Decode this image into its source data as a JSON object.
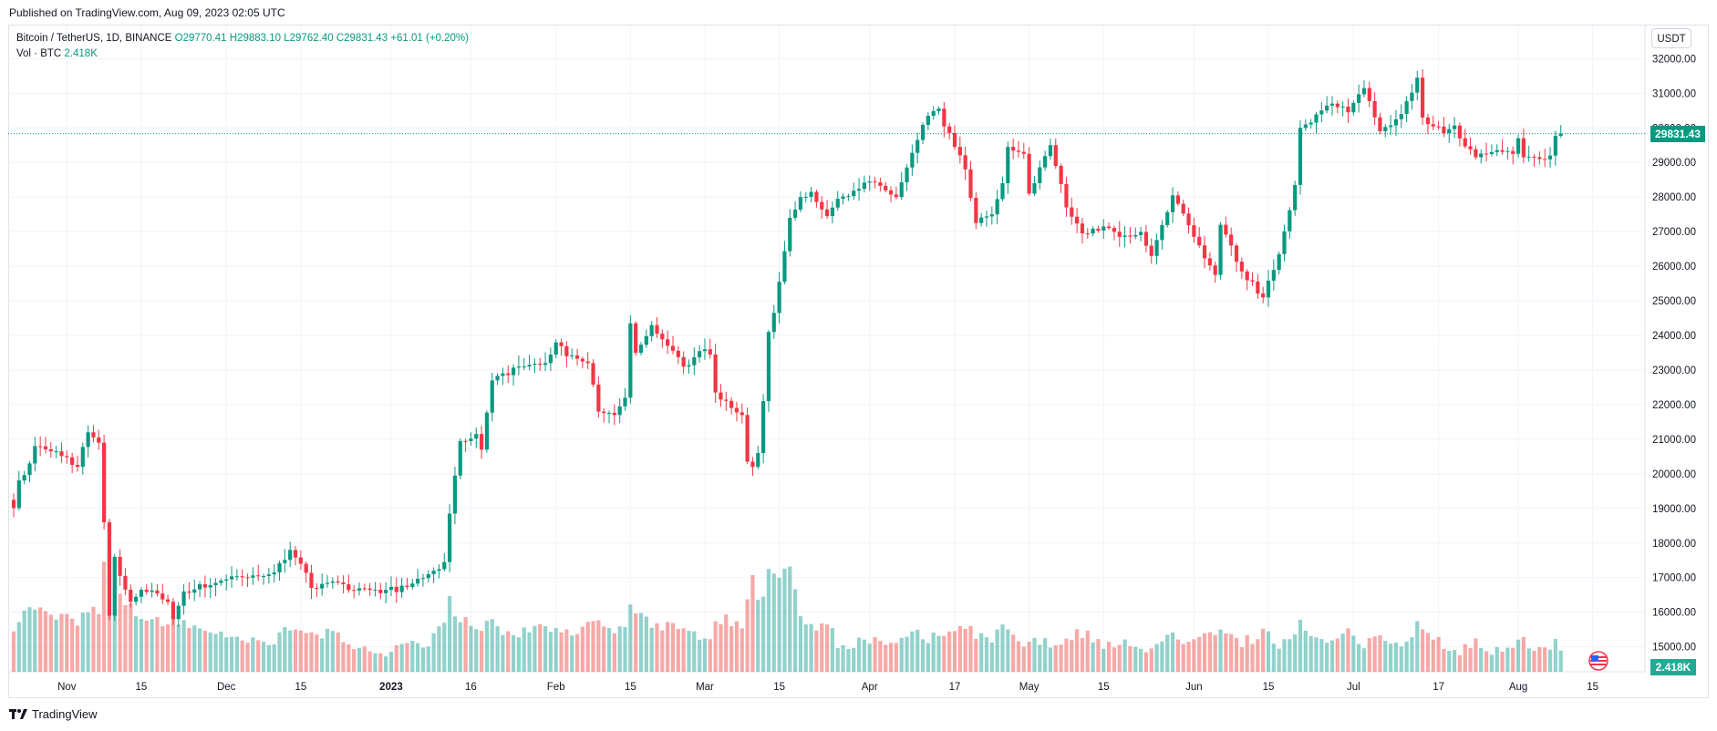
{
  "header": {
    "published": "Published on TradingView.com, Aug 09, 2023 02:05 UTC"
  },
  "legend": {
    "symbol": "Bitcoin / TetherUS, 1D, BINANCE",
    "open": "O29770.41",
    "high": "H29883.10",
    "low": "L29762.40",
    "close": "C29831.43",
    "change": "+61.01 (+0.20%)",
    "vol_label": "Vol · BTC",
    "vol_value": "2.418K"
  },
  "scale": {
    "unit": "USDT"
  },
  "last_price": "29831.43",
  "last_volume": "2.418K",
  "footer": {
    "brand": "TradingView"
  },
  "colors": {
    "up": "#089981",
    "down": "#f23645",
    "up_vol": "#26a69a",
    "down_vol": "#ef5350"
  },
  "chart_data": {
    "type": "candlestick",
    "title": "Bitcoin / TetherUS, 1D, BINANCE",
    "ylim": [
      14200,
      32800
    ],
    "y_ticks": [
      15000,
      16000,
      17000,
      18000,
      19000,
      20000,
      21000,
      22000,
      23000,
      24000,
      25000,
      26000,
      27000,
      28000,
      29000,
      30000,
      31000,
      32000
    ],
    "x_ticks": [
      {
        "label": "Nov",
        "date": "2022-11-01"
      },
      {
        "label": "15",
        "date": "2022-11-15"
      },
      {
        "label": "Dec",
        "date": "2022-12-01"
      },
      {
        "label": "15",
        "date": "2022-12-15"
      },
      {
        "label": "2023",
        "date": "2023-01-01"
      },
      {
        "label": "16",
        "date": "2023-01-16"
      },
      {
        "label": "Feb",
        "date": "2023-02-01"
      },
      {
        "label": "15",
        "date": "2023-02-15"
      },
      {
        "label": "Mar",
        "date": "2023-03-01"
      },
      {
        "label": "15",
        "date": "2023-03-15"
      },
      {
        "label": "Apr",
        "date": "2023-04-01"
      },
      {
        "label": "17",
        "date": "2023-04-17"
      },
      {
        "label": "May",
        "date": "2023-05-01"
      },
      {
        "label": "15",
        "date": "2023-05-15"
      },
      {
        "label": "Jun",
        "date": "2023-06-01"
      },
      {
        "label": "15",
        "date": "2023-06-15"
      },
      {
        "label": "Jul",
        "date": "2023-07-01"
      },
      {
        "label": "17",
        "date": "2023-07-17"
      },
      {
        "label": "Aug",
        "date": "2023-08-01"
      },
      {
        "label": "15",
        "date": "2023-08-15"
      }
    ],
    "x_range": [
      "2022-10-22",
      "2023-08-19"
    ],
    "last_price": 29831.43,
    "anchors": [
      [
        "2022-10-22",
        19450,
        5,
        -1
      ],
      [
        "2022-10-25",
        20300,
        7,
        1
      ],
      [
        "2022-10-26",
        20800,
        7,
        1
      ],
      [
        "2022-10-29",
        20650,
        6,
        -1
      ],
      [
        "2022-11-01",
        20480,
        6,
        -1
      ],
      [
        "2022-11-03",
        20200,
        5,
        -1
      ],
      [
        "2022-11-05",
        21200,
        7,
        1
      ],
      [
        "2022-11-07",
        20900,
        6,
        -1
      ],
      [
        "2022-11-08",
        18600,
        12,
        -1
      ],
      [
        "2022-11-09",
        15900,
        14,
        -1
      ],
      [
        "2022-11-10",
        17600,
        12,
        1
      ],
      [
        "2022-11-11",
        17050,
        8,
        -1
      ],
      [
        "2022-11-13",
        16300,
        7,
        -1
      ],
      [
        "2022-11-15",
        16650,
        6,
        1
      ],
      [
        "2022-11-20",
        16400,
        5,
        -1
      ],
      [
        "2022-11-21",
        15800,
        6,
        -1
      ],
      [
        "2022-11-23",
        16600,
        5,
        1
      ],
      [
        "2022-12-01",
        16950,
        4,
        1
      ],
      [
        "2022-12-05",
        17000,
        3,
        -1
      ],
      [
        "2022-12-10",
        17150,
        3,
        1
      ],
      [
        "2022-12-13",
        17800,
        5,
        1
      ],
      [
        "2022-12-15",
        17400,
        5,
        -1
      ],
      [
        "2022-12-17",
        16700,
        4,
        -1
      ],
      [
        "2022-12-20",
        16850,
        4,
        1
      ],
      [
        "2022-12-30",
        16550,
        2,
        -1
      ],
      [
        "2023-01-01",
        16600,
        2,
        1
      ],
      [
        "2023-01-08",
        17100,
        3,
        1
      ],
      [
        "2023-01-09",
        17200,
        4,
        1
      ],
      [
        "2023-01-11",
        17450,
        5,
        1
      ],
      [
        "2023-01-12",
        18850,
        8,
        1
      ],
      [
        "2023-01-13",
        19950,
        6,
        1
      ],
      [
        "2023-01-14",
        20950,
        6,
        1
      ],
      [
        "2023-01-17",
        21150,
        4,
        1
      ],
      [
        "2023-01-18",
        20700,
        5,
        -1
      ],
      [
        "2023-01-20",
        22700,
        5,
        1
      ],
      [
        "2023-01-22",
        22800,
        4,
        1
      ],
      [
        "2023-01-25",
        23100,
        4,
        1
      ],
      [
        "2023-01-30",
        23200,
        5,
        1
      ],
      [
        "2023-02-01",
        23800,
        4,
        1
      ],
      [
        "2023-02-03",
        23400,
        4,
        -1
      ],
      [
        "2023-02-07",
        23200,
        5,
        -1
      ],
      [
        "2023-02-09",
        21800,
        6,
        -1
      ],
      [
        "2023-02-12",
        21700,
        4,
        -1
      ],
      [
        "2023-02-14",
        22200,
        5,
        1
      ],
      [
        "2023-02-15",
        24350,
        7,
        1
      ],
      [
        "2023-02-16",
        23500,
        7,
        -1
      ],
      [
        "2023-02-19",
        24300,
        5,
        1
      ],
      [
        "2023-02-22",
        23700,
        5,
        -1
      ],
      [
        "2023-02-25",
        23100,
        4,
        -1
      ],
      [
        "2023-03-01",
        23600,
        4,
        1
      ],
      [
        "2023-03-02",
        23450,
        4,
        -1
      ],
      [
        "2023-03-03",
        22350,
        6,
        -1
      ],
      [
        "2023-03-08",
        21700,
        5,
        -1
      ],
      [
        "2023-03-09",
        20350,
        8,
        -1
      ],
      [
        "2023-03-10",
        20200,
        10,
        -1
      ],
      [
        "2023-03-11",
        20600,
        8,
        1
      ],
      [
        "2023-03-12",
        22100,
        8,
        1
      ],
      [
        "2023-03-13",
        24100,
        11,
        1
      ],
      [
        "2023-03-14",
        24650,
        11,
        1
      ],
      [
        "2023-03-17",
        27400,
        11,
        1
      ],
      [
        "2023-03-19",
        28000,
        6,
        1
      ],
      [
        "2023-03-21",
        28150,
        5,
        1
      ],
      [
        "2023-03-24",
        27450,
        5,
        -1
      ],
      [
        "2023-03-26",
        27950,
        3,
        1
      ],
      [
        "2023-04-01",
        28450,
        3,
        1
      ],
      [
        "2023-04-06",
        28000,
        3,
        -1
      ],
      [
        "2023-04-10",
        29650,
        4,
        1
      ],
      [
        "2023-04-12",
        30350,
        3,
        1
      ],
      [
        "2023-04-14",
        30450,
        4,
        1
      ],
      [
        "2023-04-17",
        29450,
        4,
        -1
      ],
      [
        "2023-04-19",
        28800,
        5,
        -1
      ],
      [
        "2023-04-21",
        27250,
        4,
        -1
      ],
      [
        "2023-04-24",
        27500,
        3,
        1
      ],
      [
        "2023-04-26",
        28400,
        5,
        1
      ],
      [
        "2023-04-27",
        29450,
        4,
        1
      ],
      [
        "2023-04-30",
        29250,
        3,
        -1
      ],
      [
        "2023-05-01",
        28100,
        3,
        -1
      ],
      [
        "2023-05-05",
        29500,
        3,
        1
      ],
      [
        "2023-05-06",
        28900,
        3,
        -1
      ],
      [
        "2023-05-08",
        27700,
        4,
        -1
      ],
      [
        "2023-05-11",
        26950,
        4,
        -1
      ],
      [
        "2023-05-15",
        27150,
        3,
        1
      ],
      [
        "2023-05-18",
        26850,
        3,
        -1
      ],
      [
        "2023-05-22",
        26850,
        2,
        1
      ],
      [
        "2023-05-24",
        26300,
        3,
        -1
      ],
      [
        "2023-05-28",
        28050,
        4,
        1
      ],
      [
        "2023-06-01",
        26850,
        3,
        -1
      ],
      [
        "2023-06-05",
        25750,
        4,
        -1
      ],
      [
        "2023-06-06",
        27200,
        4,
        1
      ],
      [
        "2023-06-10",
        25850,
        3,
        -1
      ],
      [
        "2023-06-14",
        25100,
        4,
        -1
      ],
      [
        "2023-06-17",
        26350,
        3,
        1
      ],
      [
        "2023-06-20",
        28350,
        4,
        1
      ],
      [
        "2023-06-21",
        30000,
        6,
        1
      ],
      [
        "2023-06-22",
        30100,
        5,
        1
      ],
      [
        "2023-06-25",
        30500,
        3,
        1
      ],
      [
        "2023-06-27",
        30700,
        3,
        1
      ],
      [
        "2023-06-30",
        30450,
        4,
        -1
      ],
      [
        "2023-07-03",
        31150,
        3,
        1
      ],
      [
        "2023-07-06",
        29900,
        4,
        -1
      ],
      [
        "2023-07-10",
        30400,
        3,
        1
      ],
      [
        "2023-07-13",
        31450,
        5,
        1
      ],
      [
        "2023-07-14",
        30300,
        4,
        -1
      ],
      [
        "2023-07-18",
        29850,
        3,
        -1
      ],
      [
        "2023-07-20",
        29900,
        2,
        1
      ],
      [
        "2023-07-24",
        29150,
        3,
        -1
      ],
      [
        "2023-07-27",
        29300,
        2,
        1
      ],
      [
        "2023-07-31",
        29250,
        2,
        -1
      ],
      [
        "2023-08-01",
        29700,
        3,
        1
      ],
      [
        "2023-08-02",
        29150,
        3,
        -1
      ],
      [
        "2023-08-05",
        29100,
        2,
        -1
      ],
      [
        "2023-08-07",
        29200,
        2,
        1
      ],
      [
        "2023-08-08",
        29770,
        3,
        1
      ],
      [
        "2023-08-09",
        29831.43,
        2.418,
        1
      ]
    ]
  }
}
